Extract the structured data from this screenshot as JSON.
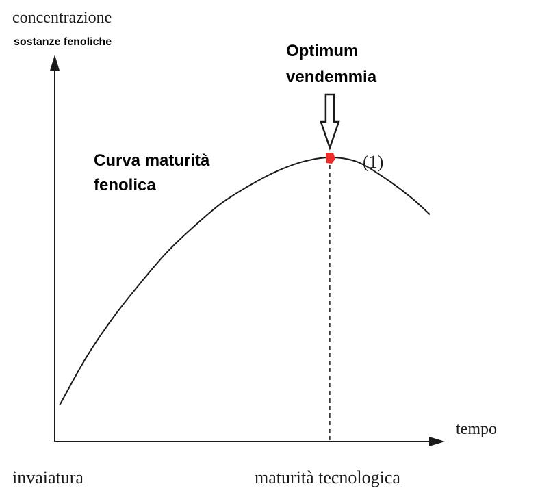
{
  "chart_data": {
    "type": "line",
    "ylabel_line1": "concentrazione",
    "ylabel_line2": "sostanze fenoliche",
    "xlabel": "tempo",
    "x_tick_start": "invaiatura",
    "x_tick_marker": "maturità tecnologica",
    "series": [
      {
        "label_line1": "Curva maturità",
        "label_line2": "fenolica",
        "curve_tag": "(1)",
        "x": [
          0.0,
          0.1,
          0.2,
          0.3,
          0.4,
          0.5,
          0.6,
          0.7,
          0.8,
          0.9,
          1.0,
          1.1,
          1.2,
          1.3,
          1.37
        ],
        "y": [
          0.13,
          0.3,
          0.44,
          0.56,
          0.67,
          0.76,
          0.84,
          0.9,
          0.95,
          0.985,
          1.0,
          0.985,
          0.93,
          0.86,
          0.8
        ]
      }
    ],
    "marker": {
      "x": 1.0,
      "y": 1.0,
      "color": "#ee2b2b",
      "title_line1": "Optimum",
      "title_line2": "vendemmia",
      "icon": "down-arrow-icon"
    },
    "xlim": [
      0,
      1.37
    ],
    "ylim": [
      0,
      1.0
    ],
    "grid": false,
    "axis_color": "#1a1a1a"
  }
}
